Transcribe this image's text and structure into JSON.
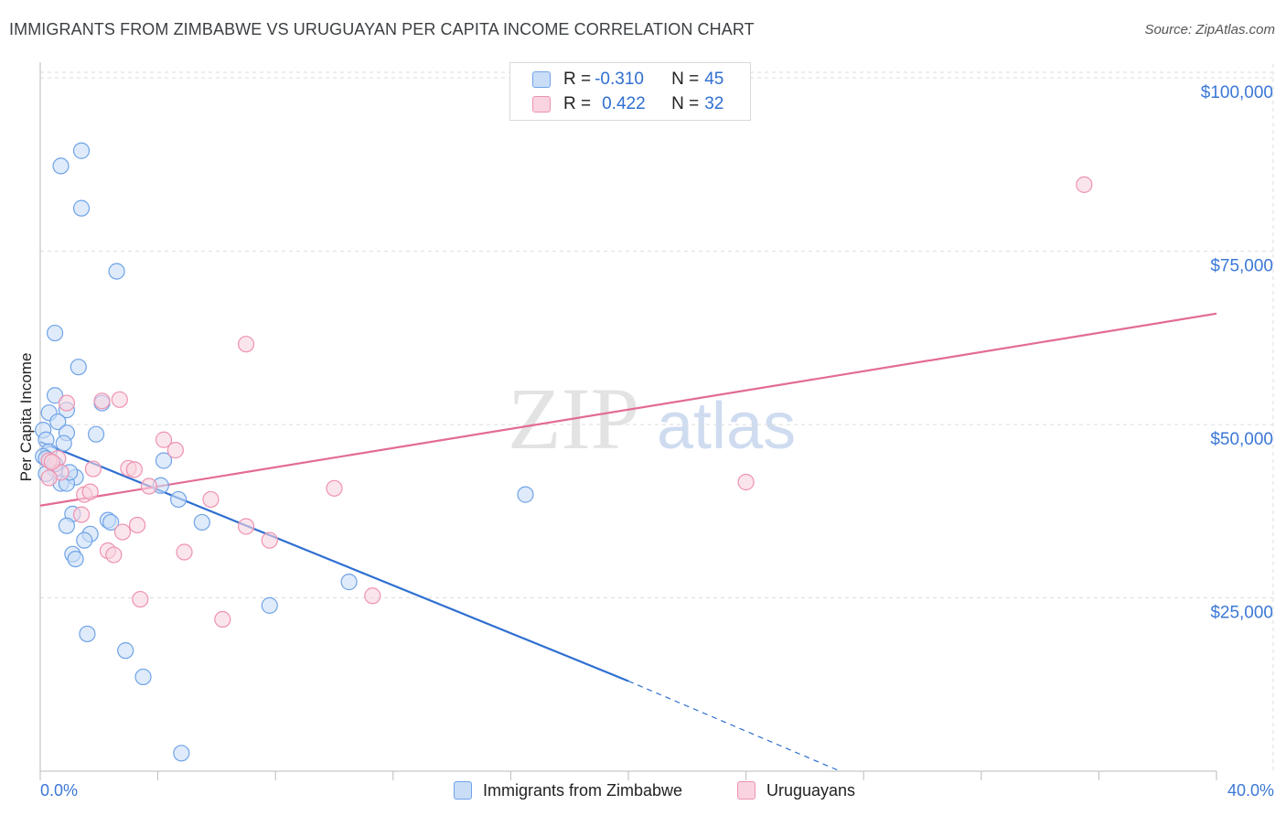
{
  "title": "IMMIGRANTS FROM ZIMBABWE VS URUGUAYAN PER CAPITA INCOME CORRELATION CHART",
  "source": "Source: ZipAtlas.com",
  "watermark": {
    "zip": "ZIP",
    "atlas": "atlas"
  },
  "legend": {
    "rows": [
      {
        "r_label": "R = ",
        "r_value": "-0.310",
        "n_label": "N = ",
        "n_value": "45"
      },
      {
        "r_label": "R = ",
        "r_value": "0.422",
        "n_label": "N = ",
        "n_value": "32"
      }
    ]
  },
  "bottom_legend": {
    "series1": "Immigrants from Zimbabwe",
    "series2": "Uruguayans"
  },
  "chart_data": {
    "type": "scatter",
    "title": "IMMIGRANTS FROM ZIMBABWE VS URUGUAYAN PER CAPITA INCOME CORRELATION CHART",
    "xlabel": "",
    "ylabel": "Per Capita Income",
    "xlim": [
      0,
      40
    ],
    "ylim": [
      0,
      102000
    ],
    "x_tick_labels": [
      "0.0%",
      "40.0%"
    ],
    "y_ticks": [
      25000,
      50000,
      75000,
      100000
    ],
    "y_tick_labels": [
      "$25,000",
      "$50,000",
      "$75,000",
      "$100,000"
    ],
    "colors": {
      "series1": "#6fa3e8",
      "series1_fill": "#c9ddf7",
      "series1_line": "#2f6fd0",
      "series2": "#ee93b0",
      "series2_fill": "#f9d3e0",
      "series2_line": "#e36b93"
    },
    "series": [
      {
        "name": "Immigrants from Zimbabwe",
        "r": -0.31,
        "n": 45,
        "trend": {
          "x0": 0,
          "y0": 47500,
          "x1": 20,
          "y1": 13000,
          "dash_x1": 27.2,
          "dash_y1": 0
        },
        "points": [
          [
            1.4,
            89500
          ],
          [
            0.7,
            87300
          ],
          [
            1.4,
            81200
          ],
          [
            2.6,
            72100
          ],
          [
            0.5,
            63200
          ],
          [
            1.3,
            58300
          ],
          [
            0.5,
            54200
          ],
          [
            2.1,
            53100
          ],
          [
            0.9,
            52100
          ],
          [
            0.3,
            51700
          ],
          [
            0.6,
            50400
          ],
          [
            0.1,
            49200
          ],
          [
            0.9,
            48800
          ],
          [
            1.9,
            48600
          ],
          [
            0.2,
            47800
          ],
          [
            0.8,
            47300
          ],
          [
            0.3,
            46100
          ],
          [
            0.1,
            45400
          ],
          [
            0.2,
            45100
          ],
          [
            4.2,
            44800
          ],
          [
            0.5,
            43600
          ],
          [
            0.2,
            42900
          ],
          [
            1.2,
            42400
          ],
          [
            0.7,
            41500
          ],
          [
            4.1,
            41200
          ],
          [
            0.9,
            41500
          ],
          [
            4.7,
            39200
          ],
          [
            16.5,
            39900
          ],
          [
            1.1,
            37100
          ],
          [
            2.3,
            36200
          ],
          [
            5.5,
            35900
          ],
          [
            2.4,
            35900
          ],
          [
            0.9,
            35400
          ],
          [
            1.7,
            34200
          ],
          [
            1.5,
            33300
          ],
          [
            1.1,
            31300
          ],
          [
            1.2,
            30600
          ],
          [
            10.5,
            27300
          ],
          [
            7.8,
            23900
          ],
          [
            1.6,
            19800
          ],
          [
            2.9,
            17400
          ],
          [
            3.5,
            13600
          ],
          [
            4.8,
            2600
          ],
          [
            0.5,
            44300
          ],
          [
            1.0,
            43100
          ]
        ]
      },
      {
        "name": "Uruguayans",
        "r": 0.422,
        "n": 32,
        "trend": {
          "x0": 0,
          "y0": 38300,
          "x1": 40,
          "y1": 66000
        },
        "points": [
          [
            35.5,
            84600
          ],
          [
            7.0,
            61600
          ],
          [
            2.7,
            53600
          ],
          [
            0.9,
            53100
          ],
          [
            2.1,
            53400
          ],
          [
            4.2,
            47800
          ],
          [
            4.6,
            46300
          ],
          [
            0.6,
            45100
          ],
          [
            0.3,
            44800
          ],
          [
            3.0,
            43700
          ],
          [
            3.2,
            43500
          ],
          [
            1.8,
            43600
          ],
          [
            0.7,
            43100
          ],
          [
            0.3,
            42300
          ],
          [
            24.0,
            41700
          ],
          [
            10.0,
            40800
          ],
          [
            3.7,
            41100
          ],
          [
            1.5,
            39900
          ],
          [
            1.7,
            40300
          ],
          [
            5.8,
            39200
          ],
          [
            1.4,
            37000
          ],
          [
            3.3,
            35500
          ],
          [
            7.0,
            35300
          ],
          [
            2.8,
            34500
          ],
          [
            7.8,
            33300
          ],
          [
            2.3,
            31800
          ],
          [
            4.9,
            31600
          ],
          [
            2.5,
            31200
          ],
          [
            11.3,
            25300
          ],
          [
            3.4,
            24800
          ],
          [
            6.2,
            21900
          ],
          [
            0.4,
            44600
          ]
        ]
      }
    ]
  }
}
